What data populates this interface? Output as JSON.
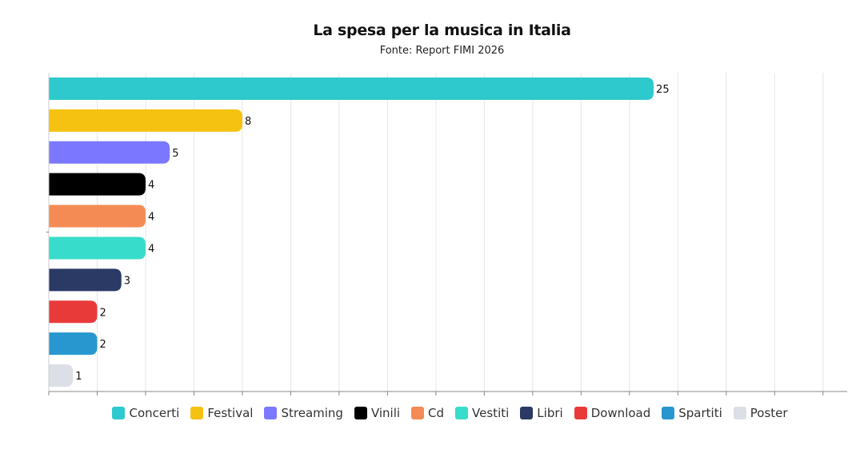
{
  "chart_data": {
    "type": "bar",
    "orientation": "horizontal",
    "title": "La spesa per la musica in Italia",
    "subtitle": "Fonte: Report FIMI 2026",
    "categories": [
      "Concerti",
      "Festival",
      "Streaming",
      "Vinili",
      "Cd",
      "Vestiti",
      "Libri",
      "Download",
      "Spartiti",
      "Poster"
    ],
    "values": [
      25,
      8,
      5,
      4,
      4,
      4,
      3,
      2,
      2,
      1
    ],
    "colors": [
      "#2ec9cc",
      "#f5c211",
      "#7b78ff",
      "#000000",
      "#f58b54",
      "#38dcca",
      "#2b3965",
      "#e93a3a",
      "#2897cf",
      "#dddfe6"
    ],
    "xlim": [
      0,
      33
    ],
    "xlabel": "",
    "ylabel": "",
    "grid": true,
    "legend_position": "bottom",
    "data_labels": true
  }
}
